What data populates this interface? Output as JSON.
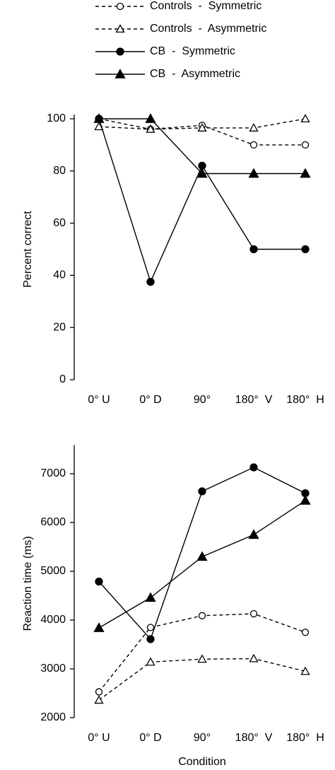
{
  "chart_data": [
    {
      "type": "line",
      "ylabel": "Percent correct",
      "categories": [
        "0° U",
        "0° D",
        "90°",
        "180°  V",
        "180°  H"
      ],
      "ylim": [
        0,
        100
      ],
      "yticks": [
        0,
        20,
        40,
        60,
        80,
        100
      ],
      "series": [
        {
          "name": "Controls  -  Symmetric",
          "color": "#000000",
          "marker": "circle-open",
          "dashed": true,
          "values": [
            100,
            96,
            97.5,
            90,
            90
          ]
        },
        {
          "name": "Controls  -  Asymmetric",
          "color": "#000000",
          "marker": "triangle-open",
          "dashed": true,
          "values": [
            97,
            96,
            96.5,
            96.5,
            100
          ]
        },
        {
          "name": "CB  -  Symmetric",
          "color": "#000000",
          "marker": "circle-filled",
          "dashed": false,
          "values": [
            100,
            37.5,
            82,
            50,
            50
          ]
        },
        {
          "name": "CB  -  Asymmetric",
          "color": "#000000",
          "marker": "triangle-filled",
          "dashed": false,
          "values": [
            100,
            100,
            79,
            79,
            79
          ]
        }
      ]
    },
    {
      "type": "line",
      "ylabel": "Reaction time (ms)",
      "xlabel": "Condition",
      "categories": [
        "0° U",
        "0° D",
        "90°",
        "180°  V",
        "180°  H"
      ],
      "ylim": [
        2000,
        7500
      ],
      "yticks": [
        2000,
        3000,
        4000,
        5000,
        6000,
        7000
      ],
      "series": [
        {
          "color": "#000000",
          "marker": "circle-open",
          "dashed": true,
          "values": [
            2530,
            3850,
            4090,
            4130,
            3750
          ]
        },
        {
          "color": "#000000",
          "marker": "triangle-open",
          "dashed": true,
          "values": [
            2360,
            3140,
            3200,
            3210,
            2950
          ]
        },
        {
          "color": "#000000",
          "marker": "circle-filled",
          "dashed": false,
          "values": [
            4790,
            3610,
            6640,
            7130,
            6600
          ]
        },
        {
          "color": "#000000",
          "marker": "triangle-filled",
          "dashed": false,
          "values": [
            3840,
            4460,
            5300,
            5750,
            6450
          ]
        }
      ]
    }
  ]
}
